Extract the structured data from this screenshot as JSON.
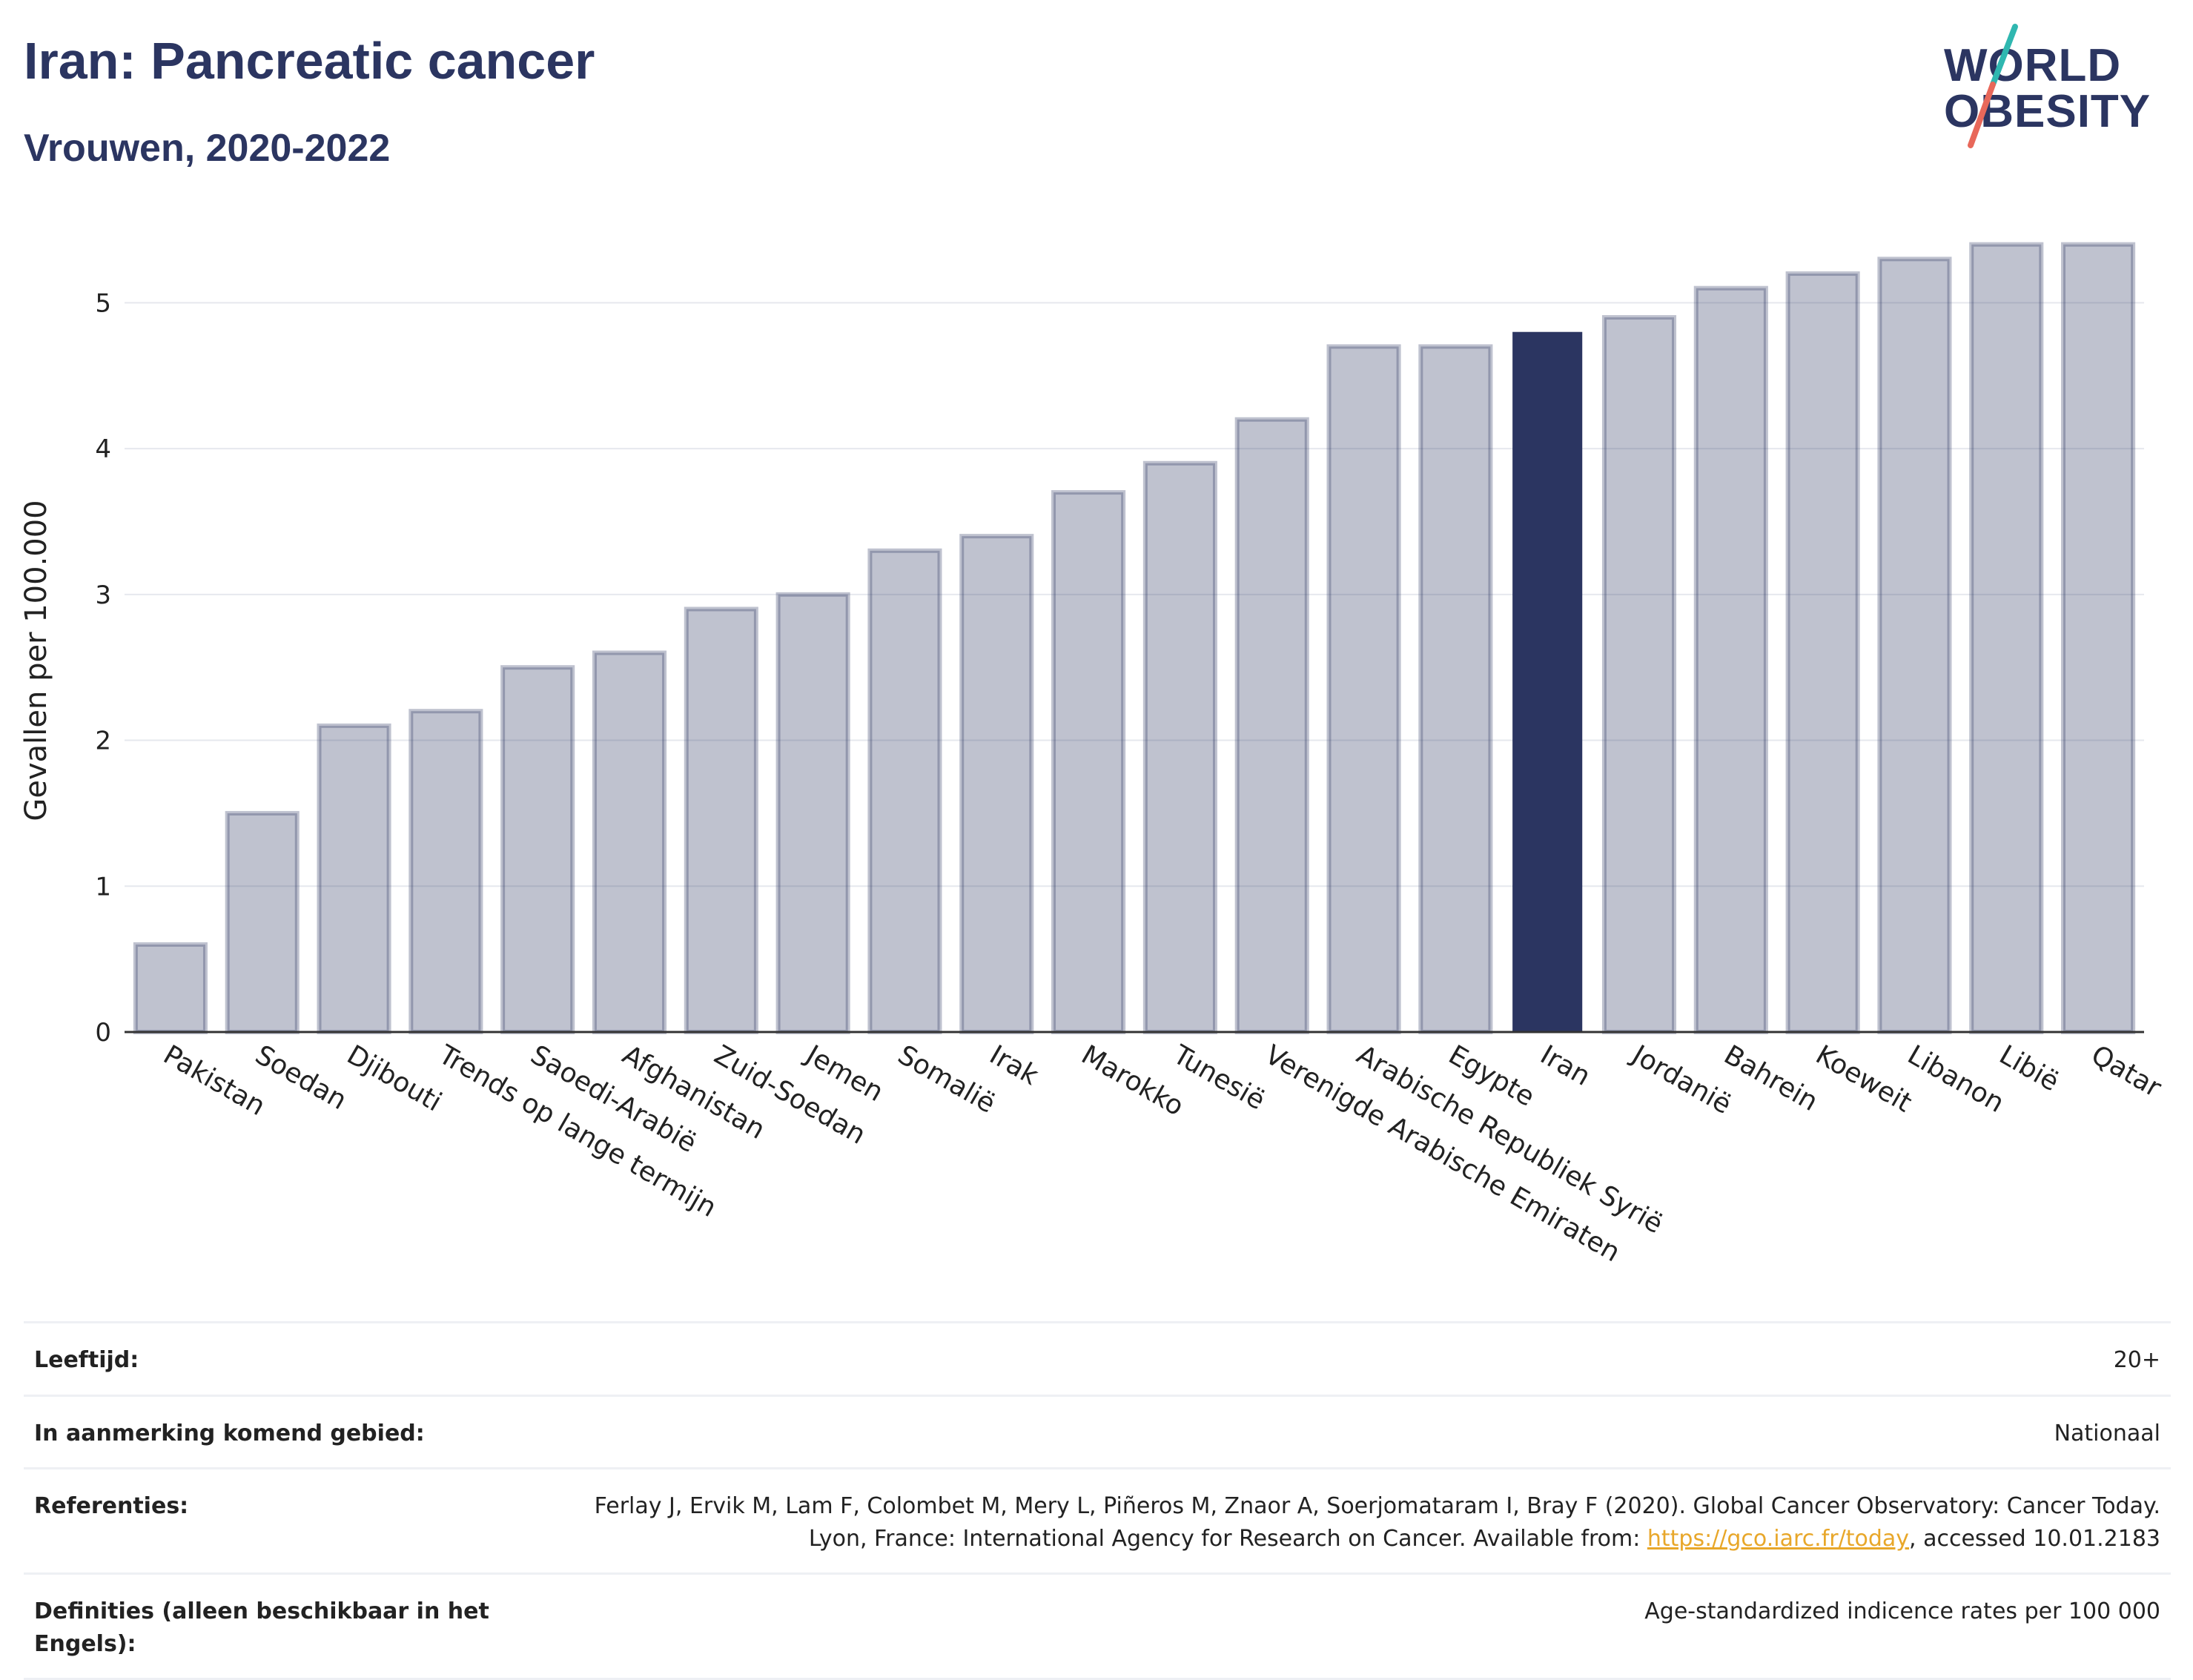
{
  "header": {
    "title": "Iran: Pancreatic cancer",
    "subtitle": "Vrouwen, 2020-2022"
  },
  "logo": {
    "line1": "WORLD",
    "line2": "OBESITY",
    "icon": "world-obesity-slash-logo",
    "colors": {
      "slash_top": "#2fb7b0",
      "slash_bottom": "#e8685a"
    }
  },
  "chart_data": {
    "type": "bar",
    "title": "Iran: Pancreatic cancer",
    "subtitle": "Vrouwen, 2020-2022",
    "xlabel": "",
    "ylabel": "Gevallen per 100.000",
    "ylim": [
      0,
      5.5
    ],
    "yticks": [
      0,
      1,
      2,
      3,
      4,
      5
    ],
    "grid": true,
    "highlight": "Iran",
    "colors": {
      "bar": "#2b3561",
      "bar_fill_opacity": 0.3,
      "highlight": "#2b3561",
      "grid": "#e6e8ee"
    },
    "categories": [
      "Pakistan",
      "Soedan",
      "Djibouti",
      "Trends op lange termijn",
      "Saoedi-Arabië",
      "Afghanistan",
      "Zuid-Soedan",
      "Jemen",
      "Somalië",
      "Irak",
      "Marokko",
      "Tunesië",
      "Verenigde Arabische Emiraten",
      "Arabische Republiek Syrië",
      "Egypte",
      "Iran",
      "Jordanië",
      "Bahrein",
      "Koeweit",
      "Libanon",
      "Libië",
      "Qatar"
    ],
    "values": [
      0.6,
      1.5,
      2.1,
      2.2,
      2.5,
      2.6,
      2.9,
      3.0,
      3.3,
      3.4,
      3.7,
      3.9,
      4.2,
      4.7,
      4.7,
      4.8,
      4.9,
      5.1,
      5.2,
      5.3,
      5.4,
      5.4
    ]
  },
  "info": {
    "rows": [
      {
        "key": "Leeftijd:",
        "value": "20+"
      },
      {
        "key": "In aanmerking komend gebied:",
        "value": "Nationaal"
      },
      {
        "key": "Referenties:",
        "value_before": "Ferlay J, Ervik M, Lam F, Colombet M, Mery L, Piñeros M, Znaor A, Soerjomataram I, Bray F (2020). Global Cancer Observatory: Cancer Today. Lyon, France: International Agency for Research on Cancer. Available from: ",
        "link": "https://gco.iarc.fr/today",
        "value_after": ", accessed 10.01.2183"
      },
      {
        "key": "Definities (alleen beschikbaar in het Engels):",
        "value": "Age-standardized indicence rates per 100 000"
      }
    ]
  }
}
